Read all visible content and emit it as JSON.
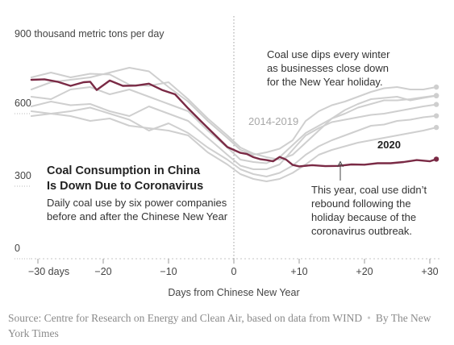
{
  "chart_data": {
    "type": "line",
    "title": "Coal Consumption in China\nIs Down Due to Coronavirus",
    "subtitle": "Daily coal use by six power companies\nbefore and after the Chinese New Year",
    "xlabel": "Days from Chinese New Year",
    "ylabel": "900 thousand metric tons per day",
    "xlim": [
      -31,
      32
    ],
    "ylim": [
      0,
      900
    ],
    "x_ticks": [
      -30,
      -20,
      -10,
      0,
      10,
      20,
      30
    ],
    "x_tick_labels": [
      "−30 days",
      "−20",
      "−10",
      "0",
      "+10",
      "+20",
      "+30"
    ],
    "y_ticks": [
      0,
      300,
      600,
      900
    ],
    "y_tick_labels": [
      "0",
      "300",
      "600",
      ""
    ],
    "grid": false,
    "colors": {
      "highlight": "#7a2a45",
      "background_series": "#cfcfcf",
      "axis": "#b3b3b3"
    },
    "annotations": {
      "winter_dip": "Coal use dips every winter\nas businesses close down\nfor the New Year holiday.",
      "range_label": "2014-2019",
      "highlight_label": "2020",
      "no_rebound": "This year, coal use didn’t\nrebound following the\nholiday because of the\ncoronavirus outbreak."
    },
    "series": [
      {
        "name": "2020",
        "highlight": true,
        "x": [
          -31,
          -29,
          -27,
          -25,
          -23,
          -22,
          -21,
          -19,
          -17,
          -15,
          -13,
          -11,
          -9,
          -7,
          -5,
          -3,
          -1,
          0,
          1,
          2,
          3,
          4,
          5,
          6,
          7,
          8,
          9,
          10,
          12,
          14,
          16,
          18,
          20,
          22,
          24,
          26,
          28,
          30,
          31
        ],
        "y": [
          730,
          732,
          722,
          705,
          720,
          722,
          688,
          727,
          705,
          706,
          714,
          688,
          670,
          612,
          558,
          505,
          452,
          440,
          428,
          423,
          410,
          402,
          398,
          393,
          411,
          400,
          378,
          372,
          377,
          373,
          374,
          380,
          379,
          385,
          385,
          390,
          398,
          393,
          402
        ]
      },
      {
        "highlight": false,
        "x": [
          -31,
          -28,
          -25,
          -22,
          -19,
          -16,
          -13,
          -10,
          -7,
          -4,
          -1,
          1,
          3,
          5,
          7,
          9,
          11,
          13,
          15,
          17,
          19,
          21,
          23,
          25,
          27,
          29,
          31
        ],
        "y": [
          740,
          760,
          740,
          755,
          752,
          710,
          705,
          720,
          650,
          570,
          500,
          450,
          425,
          410,
          400,
          420,
          470,
          520,
          570,
          605,
          630,
          650,
          655,
          660,
          645,
          655,
          664
        ]
      },
      {
        "highlight": false,
        "x": [
          -31,
          -28,
          -25,
          -22,
          -19,
          -16,
          -13,
          -10,
          -7,
          -4,
          -1,
          1,
          3,
          5,
          7,
          9,
          11,
          13,
          15,
          17,
          19,
          21,
          23,
          25,
          27,
          29,
          31
        ],
        "y": [
          690,
          720,
          730,
          740,
          760,
          780,
          765,
          700,
          640,
          560,
          490,
          440,
          420,
          430,
          445,
          480,
          560,
          600,
          625,
          640,
          660,
          680,
          695,
          700,
          690,
          690,
          700
        ]
      },
      {
        "highlight": false,
        "x": [
          -31,
          -28,
          -25,
          -22,
          -19,
          -16,
          -13,
          -10,
          -7,
          -4,
          -1,
          1,
          3,
          5,
          7,
          9,
          11,
          13,
          15,
          17,
          19,
          21,
          23,
          25,
          27,
          29,
          31
        ],
        "y": [
          660,
          650,
          690,
          700,
          670,
          690,
          660,
          630,
          600,
          520,
          450,
          400,
          390,
          385,
          410,
          460,
          510,
          540,
          570,
          590,
          615,
          630,
          645,
          645,
          650,
          658,
          665
        ]
      },
      {
        "highlight": false,
        "x": [
          -31,
          -28,
          -25,
          -22,
          -19,
          -16,
          -13,
          -10,
          -7,
          -4,
          -1,
          1,
          3,
          5,
          7,
          9,
          11,
          13,
          15,
          17,
          19,
          21,
          23,
          25,
          27,
          29,
          31
        ],
        "y": [
          620,
          640,
          625,
          630,
          600,
          580,
          620,
          590,
          560,
          490,
          420,
          375,
          360,
          360,
          380,
          440,
          500,
          530,
          555,
          565,
          575,
          585,
          590,
          600,
          610,
          620,
          628
        ]
      },
      {
        "highlight": false,
        "x": [
          -31,
          -28,
          -25,
          -22,
          -19,
          -16,
          -13,
          -10,
          -7,
          -4,
          -1,
          1,
          3,
          5,
          7,
          9,
          11,
          13,
          15,
          17,
          19,
          21,
          23,
          25,
          27,
          29,
          31
        ],
        "y": [
          600,
          590,
          600,
          615,
          590,
          565,
          520,
          550,
          510,
          450,
          400,
          360,
          340,
          330,
          345,
          375,
          420,
          455,
          480,
          500,
          520,
          540,
          545,
          560,
          565,
          575,
          581
        ]
      },
      {
        "highlight": false,
        "x": [
          -31,
          -28,
          -25,
          -22,
          -19,
          -16,
          -13,
          -10,
          -7,
          -4,
          -1,
          1,
          3,
          5,
          7,
          9,
          11,
          13,
          15,
          17,
          19,
          21,
          23,
          25,
          27,
          29,
          31
        ],
        "y": [
          580,
          590,
          580,
          560,
          570,
          540,
          530,
          520,
          500,
          430,
          380,
          340,
          320,
          310,
          320,
          345,
          380,
          420,
          440,
          455,
          470,
          480,
          490,
          500,
          510,
          520,
          533
        ]
      }
    ]
  },
  "footer": {
    "source": "Source: Centre for Research on Energy and Clean Air, based on data from WIND",
    "separator": "•",
    "credit": "By The New York Times"
  }
}
